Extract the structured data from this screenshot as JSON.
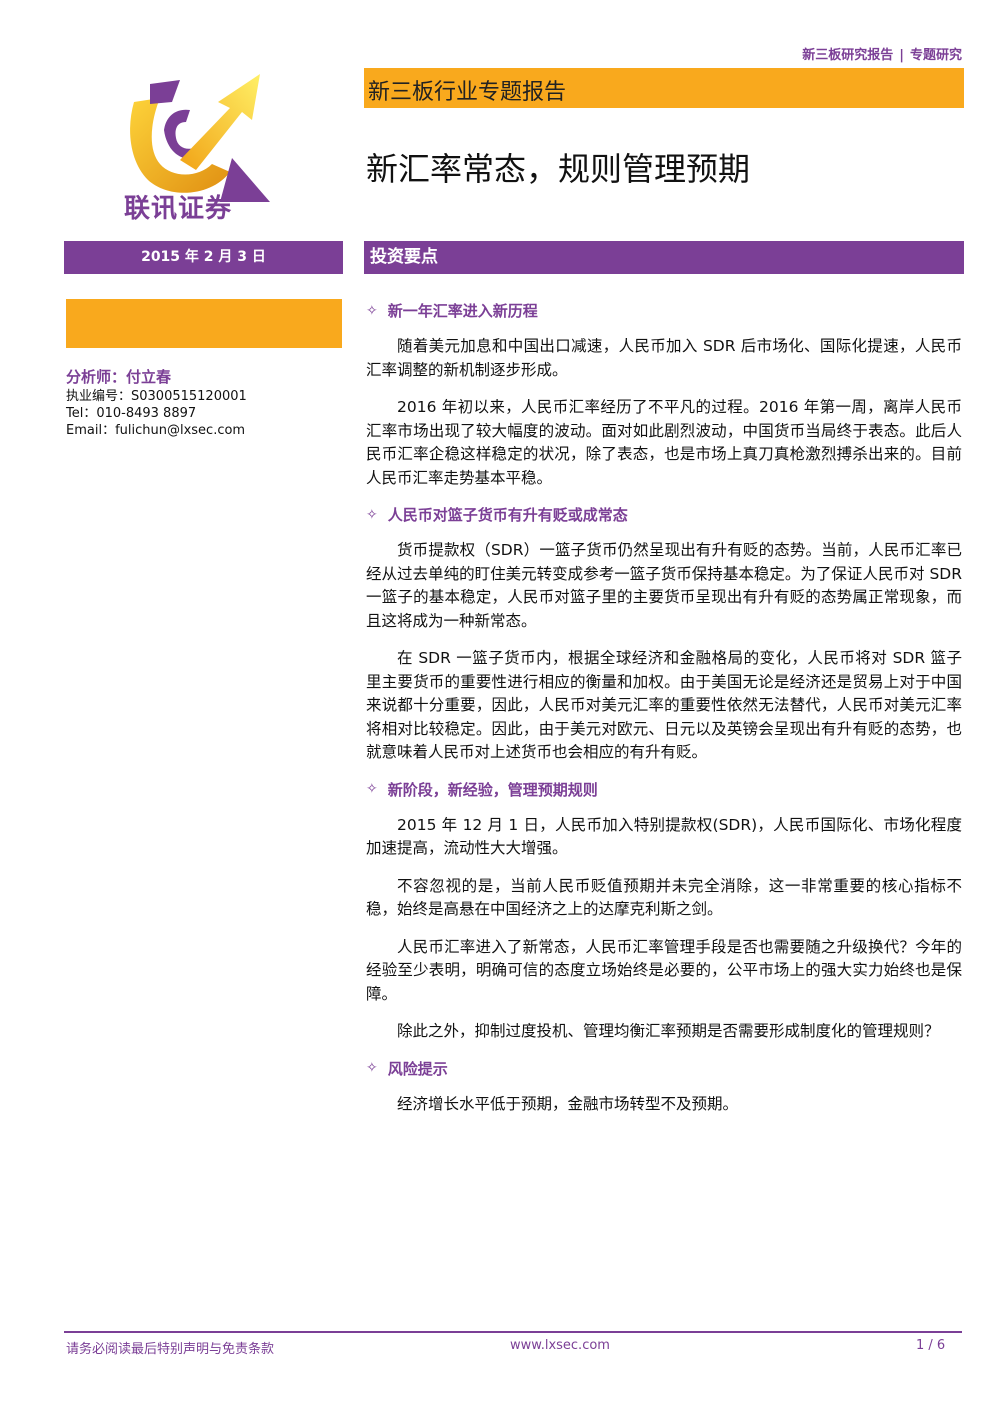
{
  "header": {
    "category": "新三板研究报告",
    "separator": "|",
    "subcategory": "专题研究",
    "banner": "新三板行业专题报告",
    "title": "新汇率常态，规则管理预期"
  },
  "logo": {
    "name": "联讯证券",
    "colors": {
      "gold": "#f3b21b",
      "purple": "#7b3f96"
    }
  },
  "sidebar": {
    "date": "2015 年 2 月 3 日",
    "analyst_label": "分析师：付立春",
    "license": "执业编号：S0300515120001",
    "tel": "Tel：010-8493 8897",
    "email": "Email：fulichun@lxsec.com"
  },
  "section_title": "投资要点",
  "sections": [
    {
      "heading": "新一年汇率进入新历程",
      "paragraphs": [
        "随着美元加息和中国出口减速，人民币加入 SDR 后市场化、国际化提速，人民币汇率调整的新机制逐步形成。",
        "2016 年初以来，人民币汇率经历了不平凡的过程。2016 年第一周，离岸人民币汇率市场出现了较大幅度的波动。面对如此剧烈波动，中国货币当局终于表态。此后人民币汇率企稳这样稳定的状况，除了表态，也是市场上真刀真枪激烈搏杀出来的。目前人民币汇率走势基本平稳。"
      ]
    },
    {
      "heading": "人民币对篮子货币有升有贬或成常态",
      "paragraphs": [
        "货币提款权（SDR）一篮子货币仍然呈现出有升有贬的态势。当前，人民币汇率已经从过去单纯的盯住美元转变成参考一篮子货币保持基本稳定。为了保证人民币对 SDR 一篮子的基本稳定，人民币对篮子里的主要货币呈现出有升有贬的态势属正常现象，而且这将成为一种新常态。",
        "在 SDR 一篮子货币内，根据全球经济和金融格局的变化，人民币将对 SDR 篮子里主要货币的重要性进行相应的衡量和加权。由于美国无论是经济还是贸易上对于中国来说都十分重要，因此，人民币对美元汇率的重要性依然无法替代，人民币对美元汇率将相对比较稳定。因此，由于美元对欧元、日元以及英镑会呈现出有升有贬的态势，也就意味着人民币对上述货币也会相应的有升有贬。"
      ]
    },
    {
      "heading": "新阶段，新经验，管理预期规则",
      "paragraphs": [
        "2015 年 12 月 1 日，人民币加入特别提款权(SDR)，人民币国际化、市场化程度加速提高，流动性大大增强。",
        "不容忽视的是，当前人民币贬值预期并未完全消除，这一非常重要的核心指标不稳，始终是高悬在中国经济之上的达摩克利斯之剑。",
        "人民币汇率进入了新常态，人民币汇率管理手段是否也需要随之升级换代？今年的经验至少表明，明确可信的态度立场始终是必要的，公平市场上的强大实力始终也是保障。",
        "除此之外，抑制过度投机、管理均衡汇率预期是否需要形成制度化的管理规则？"
      ]
    },
    {
      "heading": "风险提示",
      "paragraphs": [
        "经济增长水平低于预期，金融市场转型不及预期。"
      ]
    }
  ],
  "footer": {
    "disclaimer": "请务必阅读最后特别声明与免责条款",
    "website": "www.lxsec.com",
    "page": "1 / 6"
  }
}
